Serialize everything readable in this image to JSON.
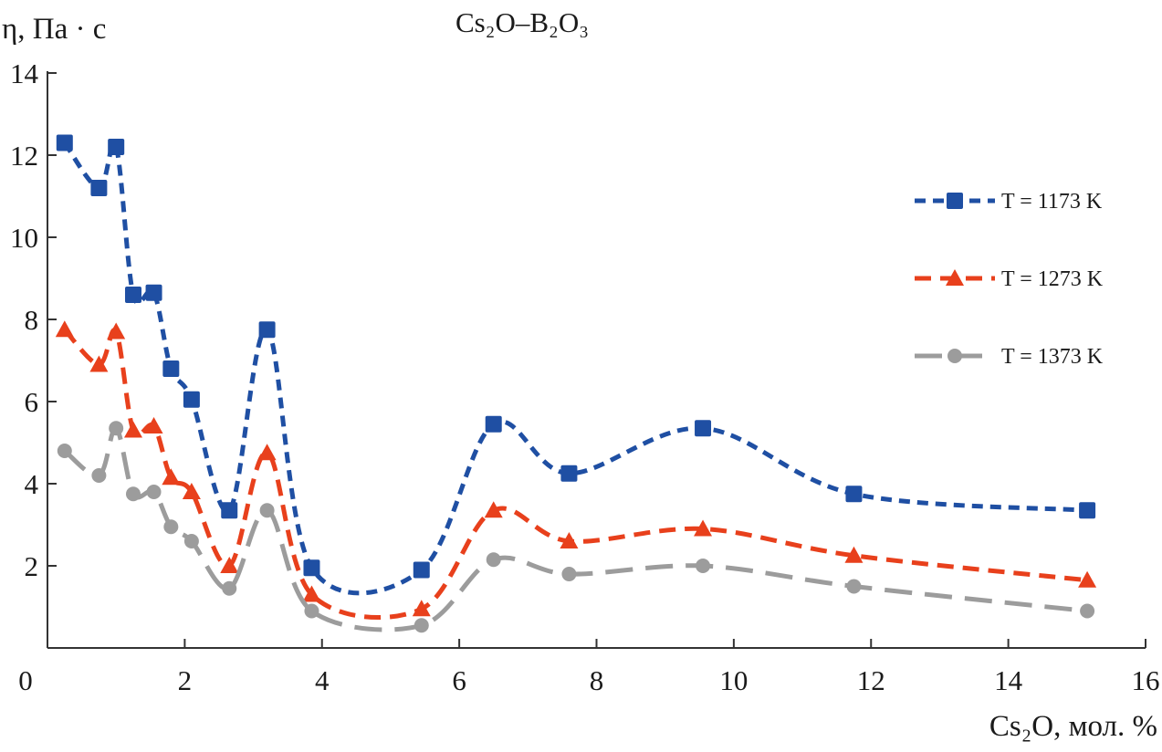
{
  "chart_data": {
    "type": "line",
    "title": "Cs₂O–B₂O₃",
    "ylabel": "η, Па · с",
    "xlabel": "Cs₂O, мол. %",
    "xlim": [
      0,
      16
    ],
    "ylim": [
      0,
      14
    ],
    "x_ticks": [
      "0",
      "2",
      "4",
      "6",
      "8",
      "10",
      "12",
      "14",
      "16"
    ],
    "y_ticks": [
      "2",
      "4",
      "6",
      "8",
      "10",
      "12",
      "14"
    ],
    "legend_position": "right",
    "series": [
      {
        "name": "T = 1173 K",
        "color": "#1f4fa3",
        "marker": "square",
        "points": [
          [
            0.25,
            12.3
          ],
          [
            0.75,
            11.2
          ],
          [
            1.0,
            12.2
          ],
          [
            1.25,
            8.6
          ],
          [
            1.55,
            8.65
          ],
          [
            1.8,
            6.8
          ],
          [
            2.1,
            6.05
          ],
          [
            2.65,
            3.35
          ],
          [
            3.2,
            7.75
          ],
          [
            3.85,
            1.95
          ],
          [
            5.45,
            1.9
          ],
          [
            6.5,
            5.45
          ],
          [
            7.6,
            4.25
          ],
          [
            9.55,
            5.35
          ],
          [
            11.75,
            3.75
          ],
          [
            15.15,
            3.35
          ]
        ]
      },
      {
        "name": "T = 1273 K",
        "color": "#e8401c",
        "marker": "triangle",
        "points": [
          [
            0.25,
            7.75
          ],
          [
            0.75,
            6.9
          ],
          [
            1.0,
            7.7
          ],
          [
            1.25,
            5.3
          ],
          [
            1.55,
            5.4
          ],
          [
            1.8,
            4.15
          ],
          [
            2.1,
            3.8
          ],
          [
            2.65,
            2.0
          ],
          [
            3.2,
            4.75
          ],
          [
            3.85,
            1.3
          ],
          [
            5.45,
            0.95
          ],
          [
            6.5,
            3.35
          ],
          [
            7.6,
            2.6
          ],
          [
            9.55,
            2.9
          ],
          [
            11.75,
            2.25
          ],
          [
            15.15,
            1.65
          ]
        ]
      },
      {
        "name": "T = 1373 K",
        "color": "#9c9c9c",
        "marker": "circle",
        "points": [
          [
            0.25,
            4.8
          ],
          [
            0.75,
            4.2
          ],
          [
            1.0,
            5.35
          ],
          [
            1.25,
            3.75
          ],
          [
            1.55,
            3.8
          ],
          [
            1.8,
            2.95
          ],
          [
            2.1,
            2.6
          ],
          [
            2.65,
            1.45
          ],
          [
            3.2,
            3.35
          ],
          [
            3.85,
            0.9
          ],
          [
            5.45,
            0.55
          ],
          [
            6.5,
            2.15
          ],
          [
            7.6,
            1.8
          ],
          [
            9.55,
            2.0
          ],
          [
            11.75,
            1.5
          ],
          [
            15.15,
            0.9
          ]
        ]
      }
    ]
  }
}
